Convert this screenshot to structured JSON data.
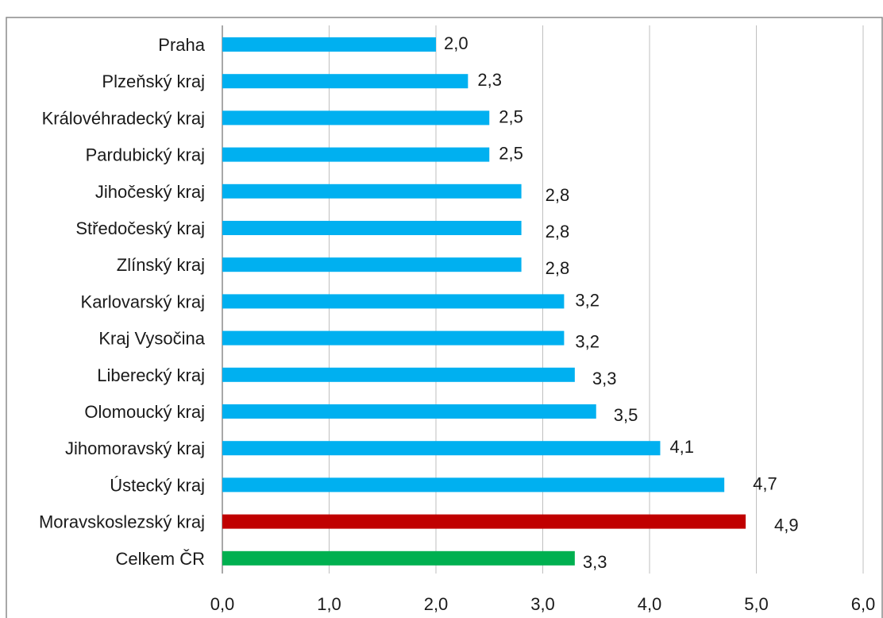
{
  "chart_data": {
    "type": "bar",
    "orientation": "horizontal",
    "title": "",
    "categories": [
      "Praha",
      "Plzeňský kraj",
      "Královéhradecký kraj",
      "Pardubický kraj",
      "Jihočeský kraj",
      "Středočeský kraj",
      "Zlínský kraj",
      "Karlovarský kraj",
      "Kraj Vysočina",
      "Liberecký kraj",
      "Olomoucký kraj",
      "Jihomoravský kraj",
      "Ústecký kraj",
      "Moravskoslezský kraj",
      "Celkem ČR"
    ],
    "values": [
      2.0,
      2.3,
      2.5,
      2.5,
      2.8,
      2.8,
      2.8,
      3.2,
      3.2,
      3.3,
      3.5,
      4.1,
      4.7,
      4.9,
      3.3
    ],
    "value_labels": [
      "2,0",
      "2,3",
      "2,5",
      "2,5",
      "2,8",
      "2,8",
      "2,8",
      "3,2",
      "3,2",
      "3,3",
      "3,5",
      "4,1",
      "4,7",
      "4,9",
      "3,3"
    ],
    "bar_colors": [
      "#00b0f0",
      "#00b0f0",
      "#00b0f0",
      "#00b0f0",
      "#00b0f0",
      "#00b0f0",
      "#00b0f0",
      "#00b0f0",
      "#00b0f0",
      "#00b0f0",
      "#00b0f0",
      "#00b0f0",
      "#00b0f0",
      "#c00000",
      "#00b050"
    ],
    "xlim": [
      0,
      6
    ],
    "xticks": [
      0,
      1,
      2,
      3,
      4,
      5,
      6
    ],
    "xtick_labels": [
      "0,0",
      "1,0",
      "2,0",
      "3,0",
      "4,0",
      "5,0",
      "6,0"
    ],
    "xlabel": "",
    "ylabel": "",
    "grid": "vertical",
    "gridline_color": "#bfbfbf"
  }
}
